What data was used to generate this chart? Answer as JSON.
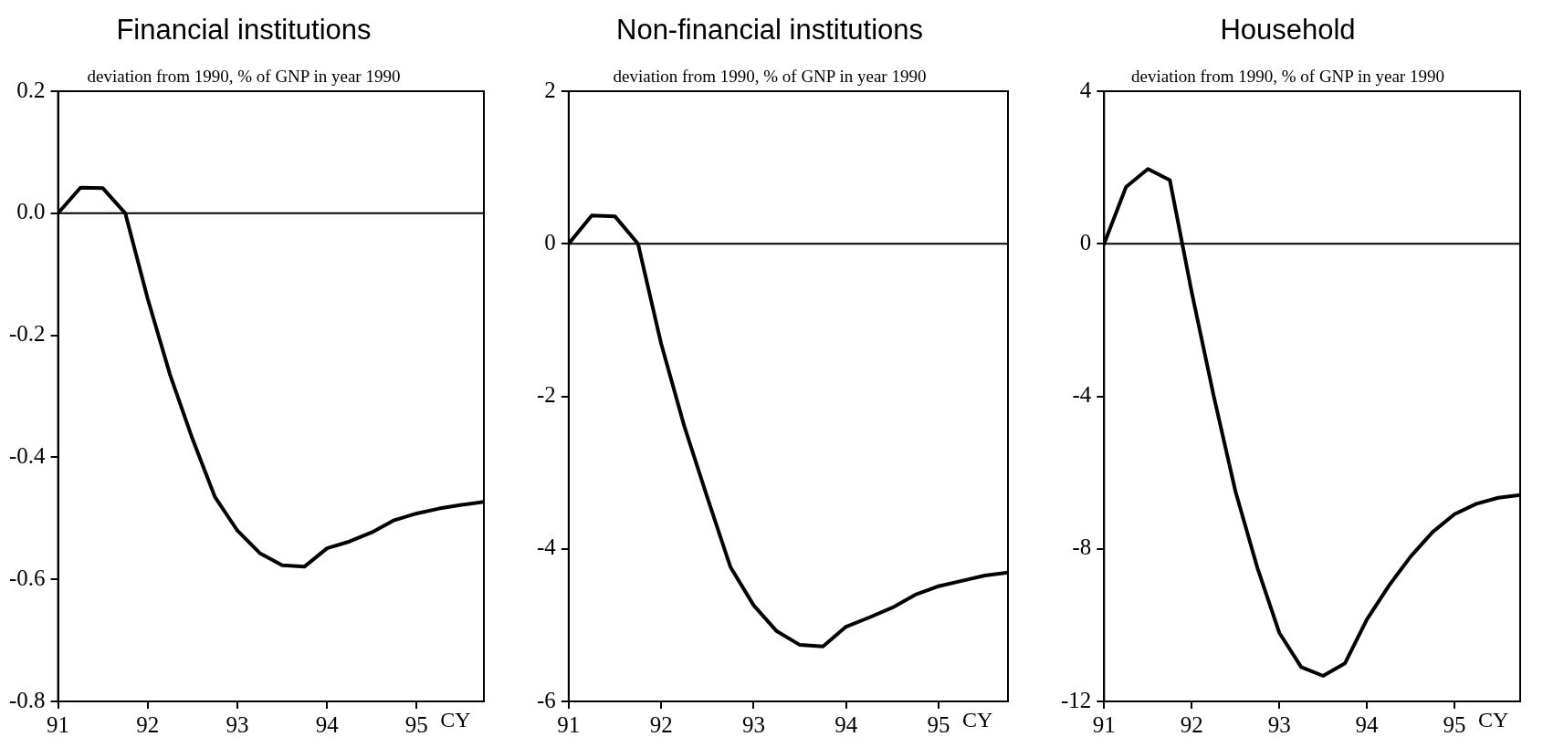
{
  "chart_data": [
    {
      "type": "line",
      "title": "Financial institutions",
      "subtitle": "deviation from 1990, % of GNP in year 1990",
      "xlabel": "CY",
      "x": [
        91,
        91.25,
        91.5,
        91.75,
        92,
        92.25,
        92.5,
        92.75,
        93,
        93.25,
        93.5,
        93.75,
        94,
        94.25,
        94.5,
        94.75,
        95,
        95.25,
        95.5,
        95.75
      ],
      "series": [
        {
          "color": "#000000",
          "values": [
            0,
            0.042,
            0.041,
            0,
            -0.14,
            -0.265,
            -0.37,
            -0.465,
            -0.52,
            -0.557,
            -0.577,
            -0.579,
            -0.549,
            -0.538,
            -0.523,
            -0.503,
            -0.492,
            -0.484,
            -0.478,
            -0.473
          ]
        }
      ],
      "xlim": [
        91,
        95.75
      ],
      "xticks": [
        91,
        92,
        93,
        94,
        95
      ],
      "ylim": [
        -0.8,
        0.2
      ],
      "yticks": [
        {
          "value": -0.8,
          "label": "-0.8"
        },
        {
          "value": -0.6,
          "label": "-0.6"
        },
        {
          "value": -0.4,
          "label": "-0.4"
        },
        {
          "value": -0.2,
          "label": "-0.2"
        },
        {
          "value": 0,
          "label": "0.0"
        },
        {
          "value": 0.2,
          "label": "0.2"
        }
      ],
      "ref_lines": [
        {
          "axis": "y",
          "value": 0,
          "color": "#000000"
        }
      ],
      "grid": false,
      "legend": false,
      "marker": "none",
      "line_style": "solid"
    },
    {
      "type": "line",
      "title": "Non-financial institutions",
      "subtitle": "deviation from 1990, % of GNP in year 1990",
      "xlabel": "CY",
      "x": [
        91,
        91.25,
        91.5,
        91.75,
        92,
        92.25,
        92.5,
        92.75,
        93,
        93.25,
        93.5,
        93.75,
        94,
        94.25,
        94.5,
        94.75,
        95,
        95.25,
        95.5,
        95.75
      ],
      "series": [
        {
          "color": "#000000",
          "values": [
            0,
            0.37,
            0.36,
            0,
            -1.31,
            -2.39,
            -3.33,
            -4.24,
            -4.74,
            -5.08,
            -5.26,
            -5.28,
            -5.02,
            -4.9,
            -4.77,
            -4.6,
            -4.49,
            -4.42,
            -4.35,
            -4.31
          ]
        }
      ],
      "xlim": [
        91,
        95.75
      ],
      "xticks": [
        91,
        92,
        93,
        94,
        95
      ],
      "ylim": [
        -6,
        2
      ],
      "yticks": [
        -6,
        -4,
        -2,
        0,
        2
      ],
      "ref_lines": [
        {
          "axis": "y",
          "value": 0,
          "color": "#000000"
        }
      ],
      "grid": false,
      "legend": false,
      "marker": "none",
      "line_style": "solid"
    },
    {
      "type": "line",
      "title": "Household",
      "subtitle": "deviation from 1990, % of GNP in year 1990",
      "xlabel": "CY",
      "x": [
        91,
        91.25,
        91.5,
        91.75,
        92,
        92.25,
        92.5,
        92.75,
        93,
        93.25,
        93.5,
        93.75,
        94,
        94.25,
        94.5,
        94.75,
        95,
        95.25,
        95.5,
        95.75
      ],
      "series": [
        {
          "color": "#000000",
          "values": [
            0,
            1.49,
            1.96,
            1.67,
            -1.27,
            -3.98,
            -6.5,
            -8.5,
            -10.2,
            -11.1,
            -11.33,
            -11.0,
            -9.85,
            -8.97,
            -8.2,
            -7.56,
            -7.09,
            -6.82,
            -6.66,
            -6.59
          ]
        }
      ],
      "xlim": [
        91,
        95.75
      ],
      "xticks": [
        91,
        92,
        93,
        94,
        95
      ],
      "ylim": [
        -12,
        4
      ],
      "yticks": [
        -12,
        -8,
        -4,
        0,
        4
      ],
      "ref_lines": [
        {
          "axis": "y",
          "value": 0,
          "color": "#000000"
        }
      ],
      "grid": false,
      "legend": false,
      "marker": "none",
      "line_style": "solid"
    }
  ]
}
